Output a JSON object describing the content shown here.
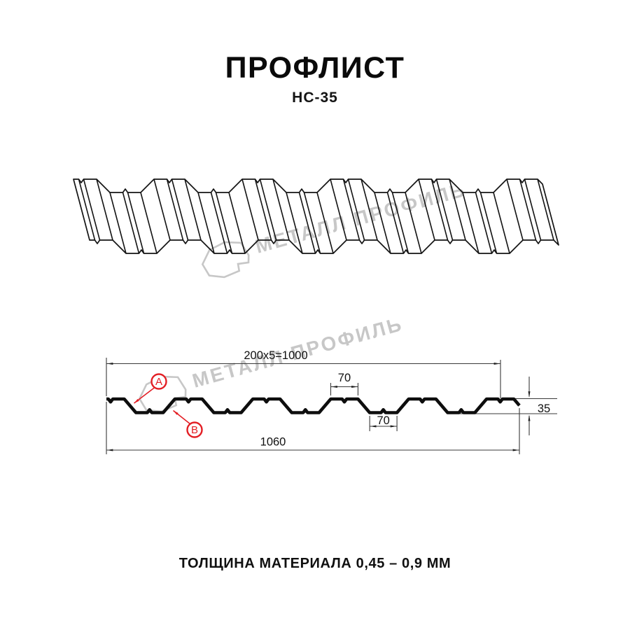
{
  "page": {
    "background": "#ffffff"
  },
  "header": {
    "title": "ПРОФЛИСТ",
    "subtitle": "НС-35"
  },
  "watermark": {
    "text": "МЕТАЛЛ ПРОФИЛЬ",
    "color": "#c7c7c7",
    "logo_icon": "metall-profil-logo"
  },
  "section": {
    "dim_pitch": "200x5=1000",
    "dim_crest_top": "70",
    "dim_valley_bottom": "70",
    "dim_overall_width": "1060",
    "dim_height": "35",
    "label_a": "А",
    "label_b": "В",
    "accent_color": "#e31e24",
    "line_color": "#141414"
  },
  "profile_spec": {
    "module_mm": 200,
    "module_count": 5,
    "crest_top_mm": 70,
    "valley_bottom_mm": 70,
    "height_mm": 35,
    "overall_width_mm": 1060
  },
  "footer": {
    "thickness_note": "ТОЛЩИНА МАТЕРИАЛА 0,45 – 0,9 ММ"
  }
}
